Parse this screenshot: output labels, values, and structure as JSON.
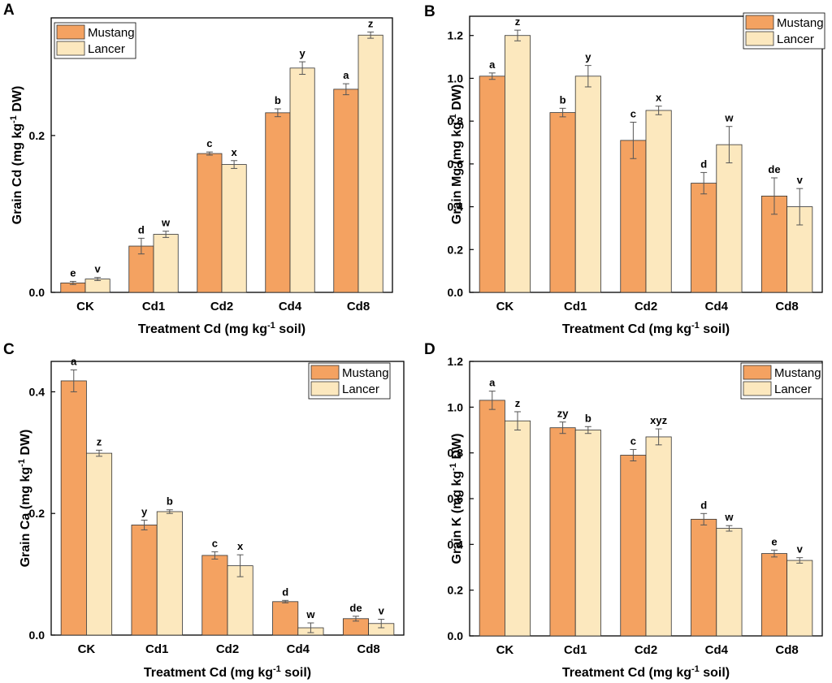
{
  "figure": {
    "colors": {
      "mustang": "#F4A261",
      "lancer": "#FCE8BE",
      "stroke": "#333333",
      "error": "#555555"
    }
  },
  "chart_data": [
    {
      "panel": "A",
      "type": "bar",
      "categories": [
        "CK",
        "Cd1",
        "Cd2",
        "Cd4",
        "Cd8"
      ],
      "series": [
        {
          "name": "Mustang",
          "values": [
            0.012,
            0.059,
            0.177,
            0.229,
            0.259
          ],
          "errors": [
            0.002,
            0.01,
            0.002,
            0.005,
            0.007
          ],
          "labels": [
            "e",
            "d",
            "c",
            "b",
            "a"
          ]
        },
        {
          "name": "Lancer",
          "values": [
            0.017,
            0.074,
            0.163,
            0.286,
            0.328
          ],
          "errors": [
            0.002,
            0.004,
            0.005,
            0.008,
            0.004
          ],
          "labels": [
            "v",
            "w",
            "x",
            "y",
            "z"
          ]
        }
      ],
      "ylim": [
        0,
        0.35
      ],
      "yticks": [
        0.0,
        0.2
      ],
      "ytick_labels": [
        "0.0",
        "0.2"
      ],
      "ylabel_main": "Grain Cd (mg kg",
      "ylabel_sup": "-1",
      "ylabel_tail": " DW)",
      "xlabel_main": "Treatment Cd (mg kg",
      "xlabel_sup": "-1",
      "xlabel_tail": " soil)",
      "legend": "top-left"
    },
    {
      "panel": "B",
      "type": "bar",
      "categories": [
        "CK",
        "Cd1",
        "Cd2",
        "Cd4",
        "Cd8"
      ],
      "series": [
        {
          "name": "Mustang",
          "values": [
            1.01,
            0.84,
            0.71,
            0.51,
            0.45
          ],
          "errors": [
            0.015,
            0.02,
            0.085,
            0.05,
            0.085
          ],
          "labels": [
            "a",
            "b",
            "c",
            "d",
            "de"
          ]
        },
        {
          "name": "Lancer",
          "values": [
            1.2,
            1.01,
            0.85,
            0.69,
            0.4
          ],
          "errors": [
            0.025,
            0.05,
            0.02,
            0.085,
            0.085
          ],
          "labels": [
            "z",
            "y",
            "x",
            "w",
            "v"
          ]
        }
      ],
      "ylim": [
        0,
        1.29
      ],
      "yticks": [
        0.0,
        0.2,
        0.4,
        0.6,
        0.8,
        1.0,
        1.2
      ],
      "ytick_labels": [
        "0.0",
        "0.2",
        "0.4",
        "0.6",
        "0.8",
        "1.0",
        "1.2"
      ],
      "ylabel_main": "Grain Mg (mg kg",
      "ylabel_sup": "-1",
      "ylabel_tail": " DW)",
      "xlabel_main": "Treatment Cd (mg kg",
      "xlabel_sup": "-1",
      "xlabel_tail": " soil)",
      "legend": "top-right"
    },
    {
      "panel": "C",
      "type": "bar",
      "categories": [
        "CK",
        "Cd1",
        "Cd2",
        "Cd4",
        "Cd8"
      ],
      "series": [
        {
          "name": "Mustang",
          "values": [
            0.418,
            0.181,
            0.131,
            0.055,
            0.027
          ],
          "errors": [
            0.018,
            0.008,
            0.006,
            0.002,
            0.004
          ],
          "labels": [
            "a",
            "y",
            "c",
            "d",
            "de"
          ]
        },
        {
          "name": "Lancer",
          "values": [
            0.299,
            0.203,
            0.114,
            0.012,
            0.019
          ],
          "errors": [
            0.005,
            0.003,
            0.018,
            0.008,
            0.007
          ],
          "labels": [
            "z",
            "b",
            "x",
            "w",
            "v"
          ]
        }
      ],
      "ylim": [
        0,
        0.45
      ],
      "yticks": [
        0.0,
        0.2,
        0.4
      ],
      "ytick_labels": [
        "0.0",
        "0.2",
        "0.4"
      ],
      "ylabel_main": "Grain Ca (mg kg",
      "ylabel_sup": "-1",
      "ylabel_tail": " DW)",
      "xlabel_main": "Treatment Cd (mg kg",
      "xlabel_sup": "-1",
      "xlabel_tail": " soil)",
      "legend": "top-right"
    },
    {
      "panel": "D",
      "type": "bar",
      "categories": [
        "CK",
        "Cd1",
        "Cd2",
        "Cd4",
        "Cd8"
      ],
      "series": [
        {
          "name": "Mustang",
          "values": [
            1.03,
            0.91,
            0.79,
            0.51,
            0.36
          ],
          "errors": [
            0.04,
            0.025,
            0.025,
            0.025,
            0.015
          ],
          "labels": [
            "a",
            "zy",
            "c",
            "d",
            "e"
          ]
        },
        {
          "name": "Lancer",
          "values": [
            0.94,
            0.9,
            0.87,
            0.47,
            0.33
          ],
          "errors": [
            0.04,
            0.015,
            0.035,
            0.012,
            0.012
          ],
          "labels": [
            "z",
            "b",
            "xyz",
            "w",
            "v"
          ]
        }
      ],
      "ylim": [
        0,
        1.2
      ],
      "yticks": [
        0.0,
        0.2,
        0.4,
        0.6,
        0.8,
        1.0,
        1.2
      ],
      "ytick_labels": [
        "0.0",
        "0.2",
        "0.4",
        "0.6",
        "0.8",
        "1.0",
        "1.2"
      ],
      "ylabel_main": "Grain K (mg kg",
      "ylabel_sup": "-1",
      "ylabel_tail": " DW)",
      "xlabel_main": "Treatment Cd (mg kg",
      "xlabel_sup": "-1",
      "xlabel_tail": " soil)",
      "legend": "top-right"
    }
  ]
}
